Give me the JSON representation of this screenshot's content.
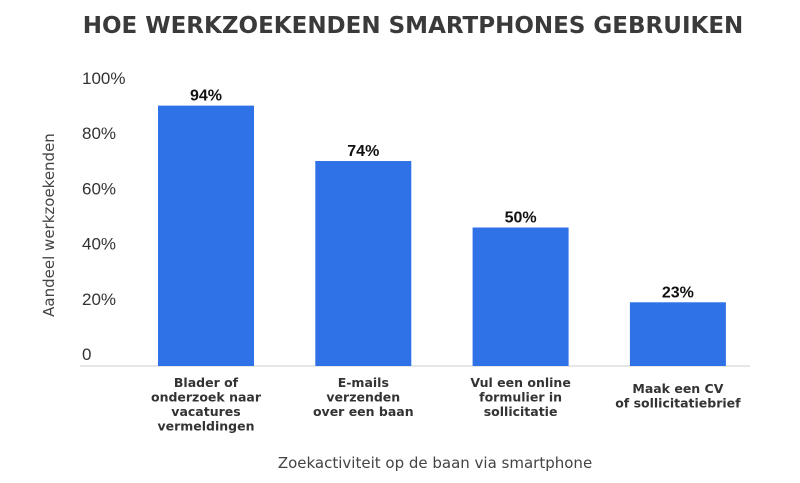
{
  "chart_data": {
    "type": "bar",
    "title": "HOE WERKZOEKENDEN SMARTPHONES GEBRUIKEN",
    "xlabel": "Zoekactiviteit op de baan via smartphone",
    "ylabel": "Aandeel werkzoekenden",
    "categories": [
      [
        "Blader of",
        "onderzoek naar",
        "vacatures",
        "vermeldingen"
      ],
      [
        "E-mails",
        "verzenden",
        "over een baan"
      ],
      [
        "Vul een online",
        "formulier in",
        "sollicitatie"
      ],
      [
        "Maak een CV",
        "of sollicitatiebrief"
      ]
    ],
    "values": [
      94,
      74,
      50,
      23
    ],
    "data_labels": [
      "94%",
      "74%",
      "50%",
      "23%"
    ],
    "yticks": [
      {
        "value": 0,
        "label": "0"
      },
      {
        "value": 20,
        "label": "20%"
      },
      {
        "value": 40,
        "label": "40%"
      },
      {
        "value": 60,
        "label": "60%"
      },
      {
        "value": 80,
        "label": "80%"
      },
      {
        "value": 100,
        "label": "100%"
      }
    ],
    "ylim": [
      0,
      100
    ],
    "grid": false,
    "bar_color": "#2f72e8"
  }
}
